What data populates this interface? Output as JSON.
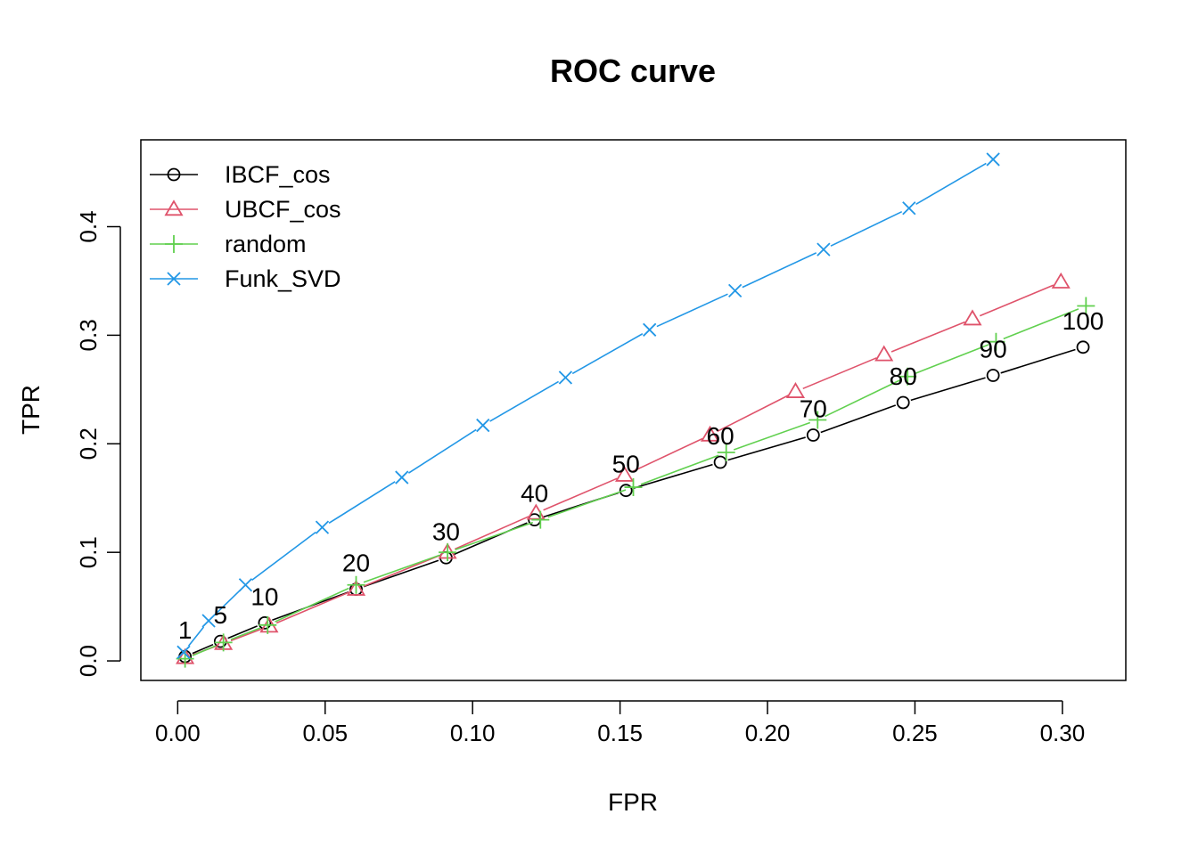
{
  "chart_data": {
    "type": "line",
    "title": "ROC curve",
    "xlabel": "FPR",
    "ylabel": "TPR",
    "xlim": [
      -0.0125,
      0.3215
    ],
    "ylim": [
      -0.018,
      0.48
    ],
    "x_ticks": [
      "0.00",
      "0.05",
      "0.10",
      "0.15",
      "0.20",
      "0.25",
      "0.30"
    ],
    "y_ticks": [
      "0.0",
      "0.1",
      "0.2",
      "0.3",
      "0.4"
    ],
    "grid": false,
    "legend_position": "top-left",
    "series": [
      {
        "name": "IBCF_cos",
        "color": "#000000",
        "marker": "circle",
        "points": [
          {
            "x": 0.0025,
            "y": 0.004,
            "label": "1"
          },
          {
            "x": 0.0145,
            "y": 0.018,
            "label": "5"
          },
          {
            "x": 0.0295,
            "y": 0.035,
            "label": "10"
          },
          {
            "x": 0.0605,
            "y": 0.066,
            "label": "20"
          },
          {
            "x": 0.091,
            "y": 0.095,
            "label": "30"
          },
          {
            "x": 0.121,
            "y": 0.13,
            "label": "40"
          },
          {
            "x": 0.152,
            "y": 0.157,
            "label": "50"
          },
          {
            "x": 0.184,
            "y": 0.183,
            "label": "60"
          },
          {
            "x": 0.2155,
            "y": 0.208,
            "label": "70"
          },
          {
            "x": 0.246,
            "y": 0.238,
            "label": "80"
          },
          {
            "x": 0.2765,
            "y": 0.263,
            "label": "90"
          },
          {
            "x": 0.307,
            "y": 0.289,
            "label": "100"
          }
        ]
      },
      {
        "name": "UBCF_cos",
        "color": "#DF536B",
        "marker": "triangle",
        "points": [
          {
            "x": 0.0025,
            "y": 0.003
          },
          {
            "x": 0.0155,
            "y": 0.016
          },
          {
            "x": 0.031,
            "y": 0.032
          },
          {
            "x": 0.0605,
            "y": 0.066
          },
          {
            "x": 0.0915,
            "y": 0.1
          },
          {
            "x": 0.1215,
            "y": 0.136
          },
          {
            "x": 0.1515,
            "y": 0.171
          },
          {
            "x": 0.1805,
            "y": 0.208
          },
          {
            "x": 0.2095,
            "y": 0.248
          },
          {
            "x": 0.2395,
            "y": 0.282
          },
          {
            "x": 0.2695,
            "y": 0.315
          },
          {
            "x": 0.2995,
            "y": 0.349
          }
        ]
      },
      {
        "name": "random",
        "color": "#61D04F",
        "marker": "plus",
        "points": [
          {
            "x": 0.0025,
            "y": 0.002
          },
          {
            "x": 0.0155,
            "y": 0.017
          },
          {
            "x": 0.0305,
            "y": 0.033
          },
          {
            "x": 0.0605,
            "y": 0.07
          },
          {
            "x": 0.0915,
            "y": 0.1
          },
          {
            "x": 0.123,
            "y": 0.13
          },
          {
            "x": 0.1545,
            "y": 0.16
          },
          {
            "x": 0.186,
            "y": 0.192
          },
          {
            "x": 0.217,
            "y": 0.222
          },
          {
            "x": 0.2475,
            "y": 0.262
          },
          {
            "x": 0.2775,
            "y": 0.294
          },
          {
            "x": 0.308,
            "y": 0.327
          }
        ]
      },
      {
        "name": "Funk_SVD",
        "color": "#2297E6",
        "marker": "cross",
        "points": [
          {
            "x": 0.002,
            "y": 0.008
          },
          {
            "x": 0.0105,
            "y": 0.037
          },
          {
            "x": 0.023,
            "y": 0.07
          },
          {
            "x": 0.049,
            "y": 0.123
          },
          {
            "x": 0.076,
            "y": 0.169
          },
          {
            "x": 0.1035,
            "y": 0.217
          },
          {
            "x": 0.1315,
            "y": 0.261
          },
          {
            "x": 0.16,
            "y": 0.305
          },
          {
            "x": 0.189,
            "y": 0.341
          },
          {
            "x": 0.219,
            "y": 0.379
          },
          {
            "x": 0.248,
            "y": 0.417
          },
          {
            "x": 0.2765,
            "y": 0.462
          }
        ]
      }
    ]
  }
}
